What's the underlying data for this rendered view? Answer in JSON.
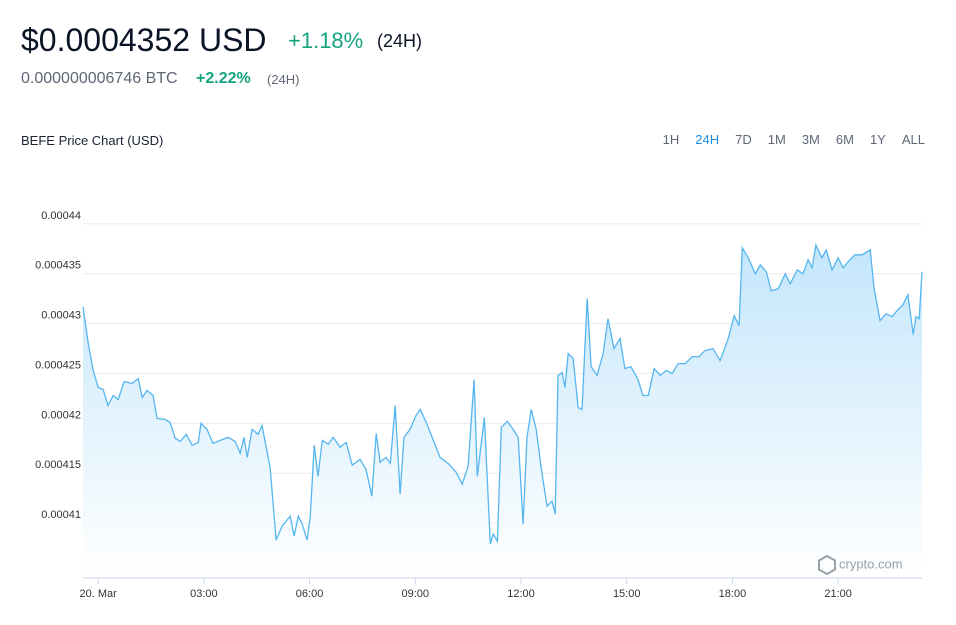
{
  "header": {
    "price": "$0.0004352 USD",
    "change": "+1.18%",
    "period": "(24H)",
    "btc_price": "0.000000006746 BTC",
    "btc_change": "+2.22%",
    "btc_period": "(24H)"
  },
  "range_buttons": {
    "options": [
      "1H",
      "24H",
      "7D",
      "1M",
      "3M",
      "6M",
      "1Y",
      "ALL"
    ],
    "active": "24H"
  },
  "watermark": "crypto.com",
  "chart_data": {
    "type": "area",
    "title": "BEFE Price Chart (USD)",
    "color": "#56b6f0",
    "grid": true,
    "x": [
      -0.43,
      -0.28,
      -0.14,
      0,
      0.14,
      0.28,
      0.43,
      0.57,
      0.74,
      0.96,
      1.14,
      1.25,
      1.39,
      1.56,
      1.67,
      1.9,
      2.04,
      2.19,
      2.33,
      2.5,
      2.67,
      2.84,
      2.92,
      3.09,
      3.26,
      3.46,
      3.69,
      3.89,
      4.03,
      4.14,
      4.23,
      4.37,
      4.54,
      4.65,
      4.88,
      5.05,
      5.22,
      5.45,
      5.56,
      5.68,
      5.79,
      5.93,
      6.02,
      6.13,
      6.24,
      6.36,
      6.53,
      6.67,
      6.87,
      7.04,
      7.21,
      7.43,
      7.6,
      7.77,
      7.89,
      8.0,
      8.17,
      8.29,
      8.43,
      8.57,
      8.68,
      8.85,
      9.02,
      9.14,
      9.31,
      9.48,
      9.7,
      9.93,
      10.16,
      10.33,
      10.5,
      10.67,
      10.76,
      10.96,
      11.13,
      11.21,
      11.33,
      11.44,
      11.61,
      11.78,
      11.92,
      12.06,
      12.17,
      12.29,
      12.43,
      12.6,
      12.74,
      12.88,
      12.97,
      13.05,
      13.17,
      13.25,
      13.34,
      13.48,
      13.62,
      13.73,
      13.88,
      13.99,
      14.16,
      14.33,
      14.47,
      14.64,
      14.81,
      14.95,
      15.12,
      15.32,
      15.46,
      15.61,
      15.78,
      15.95,
      16.12,
      16.29,
      16.46,
      16.66,
      16.86,
      17.06,
      17.22,
      17.45,
      17.65,
      17.88,
      18.05,
      18.19,
      18.28,
      18.45,
      18.65,
      18.79,
      18.96,
      19.1,
      19.3,
      19.5,
      19.64,
      19.84,
      20.0,
      20.15,
      20.26,
      20.37,
      20.54,
      20.66,
      20.83,
      21.0,
      21.14,
      21.28,
      21.48,
      21.68,
      21.91,
      22.02,
      22.19,
      22.36,
      22.53,
      22.67,
      22.84,
      22.98,
      23.13,
      23.21,
      23.3,
      23.38
    ],
    "values": [
      0.0004317,
      0.000428,
      0.0004253,
      0.0004236,
      0.0004234,
      0.0004218,
      0.0004228,
      0.0004224,
      0.0004242,
      0.000424,
      0.0004245,
      0.0004226,
      0.0004233,
      0.0004228,
      0.0004205,
      0.0004204,
      0.0004201,
      0.0004185,
      0.0004182,
      0.0004189,
      0.0004178,
      0.0004181,
      0.00042,
      0.0004194,
      0.000418,
      0.0004183,
      0.0004186,
      0.0004182,
      0.000417,
      0.0004186,
      0.0004166,
      0.0004194,
      0.0004189,
      0.0004198,
      0.0004156,
      0.0004083,
      0.0004097,
      0.0004107,
      0.0004087,
      0.0004107,
      0.0004099,
      0.0004083,
      0.0004107,
      0.0004178,
      0.0004147,
      0.0004183,
      0.0004179,
      0.0004186,
      0.0004176,
      0.0004181,
      0.0004158,
      0.0004164,
      0.0004154,
      0.0004127,
      0.000419,
      0.0004161,
      0.0004166,
      0.000416,
      0.0004218,
      0.0004129,
      0.0004186,
      0.0004194,
      0.0004208,
      0.0004214,
      0.0004201,
      0.0004186,
      0.0004166,
      0.000416,
      0.0004151,
      0.0004139,
      0.0004157,
      0.0004244,
      0.0004147,
      0.0004206,
      0.0004079,
      0.0004089,
      0.0004082,
      0.0004196,
      0.0004202,
      0.0004194,
      0.0004186,
      0.0004099,
      0.0004186,
      0.0004214,
      0.0004194,
      0.0004149,
      0.0004117,
      0.0004122,
      0.0004109,
      0.0004248,
      0.0004251,
      0.0004236,
      0.000427,
      0.0004265,
      0.0004216,
      0.0004214,
      0.0004325,
      0.0004257,
      0.0004248,
      0.000427,
      0.0004305,
      0.0004275,
      0.0004285,
      0.0004255,
      0.0004257,
      0.0004244,
      0.0004228,
      0.0004228,
      0.0004255,
      0.0004248,
      0.0004253,
      0.000425,
      0.000426,
      0.000426,
      0.0004267,
      0.0004267,
      0.0004273,
      0.0004275,
      0.0004263,
      0.0004285,
      0.0004308,
      0.0004298,
      0.0004376,
      0.0004366,
      0.000435,
      0.0004359,
      0.0004352,
      0.0004333,
      0.0004335,
      0.000435,
      0.000434,
      0.0004354,
      0.000435,
      0.0004364,
      0.0004356,
      0.0004379,
      0.0004366,
      0.0004374,
      0.0004354,
      0.0004366,
      0.0004356,
      0.0004362,
      0.0004369,
      0.0004369,
      0.0004374,
      0.0004335,
      0.0004303,
      0.000431,
      0.0004307,
      0.0004313,
      0.0004319,
      0.0004329,
      0.0004289,
      0.0004307,
      0.0004305,
      0.0004352
    ],
    "xlim": [
      -0.43,
      23.38
    ],
    "xticks": [
      {
        "value": 0,
        "label": "20. Mar"
      },
      {
        "value": 3,
        "label": "03:00"
      },
      {
        "value": 6,
        "label": "06:00"
      },
      {
        "value": 9,
        "label": "09:00"
      },
      {
        "value": 12,
        "label": "12:00"
      },
      {
        "value": 15,
        "label": "15:00"
      },
      {
        "value": 18,
        "label": "18:00"
      },
      {
        "value": 21,
        "label": "21:00"
      }
    ],
    "ylim": [
      0.0004045,
      0.000443
    ],
    "yticks": [
      0.00041,
      0.000415,
      0.00042,
      0.000425,
      0.00043,
      0.000435,
      0.00044
    ]
  }
}
